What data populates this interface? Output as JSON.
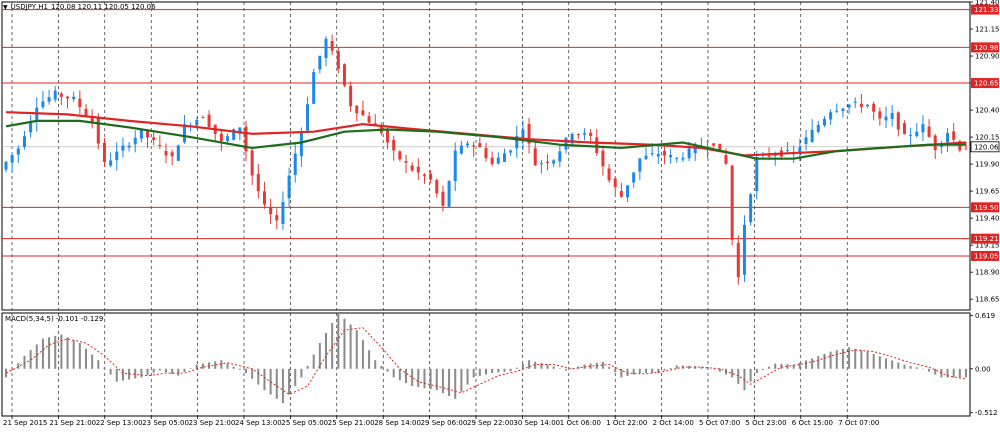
{
  "chart_data": [
    {
      "type": "candlestick",
      "title": "USDJPY,H1",
      "ohlc_text": "120.08 120.11 120.05 120.06",
      "ylim": [
        118.55,
        121.4
      ],
      "yticks": [
        "121.40",
        "121.15",
        "120.90",
        "120.65",
        "120.40",
        "120.15",
        "119.90",
        "119.65",
        "119.40",
        "119.15",
        "118.90",
        "118.65"
      ],
      "current_price": "120.06",
      "levels": [
        {
          "value": 121.33,
          "label": "121.33"
        },
        {
          "value": 120.98,
          "label": "120.98"
        },
        {
          "value": 120.65,
          "label": "120.65"
        },
        {
          "value": 119.5,
          "label": "119.50"
        },
        {
          "value": 119.21,
          "label": "119.21"
        },
        {
          "value": 119.05,
          "label": "119.05"
        }
      ],
      "xlabels": [
        "21 Sep 2015",
        "21 Sep 21:00",
        "22 Sep 13:00",
        "23 Sep 05:00",
        "23 Sep 21:00",
        "24 Sep 13:00",
        "25 Sep 05:00",
        "25 Sep 21:00",
        "28 Sep 14:00",
        "29 Sep 06:00",
        "29 Sep 22:00",
        "30 Sep 14:00",
        "1 Oct 06:00",
        "1 Oct 22:00",
        "2 Oct 14:00",
        "5 Oct 07:00",
        "5 Oct 23:00",
        "6 Oct 15:00",
        "7 Oct 07:00"
      ],
      "price_path": [
        [
          0,
          119.85
        ],
        [
          3,
          120.05
        ],
        [
          6,
          120.45
        ],
        [
          9,
          120.55
        ],
        [
          12,
          120.5
        ],
        [
          15,
          120.3
        ],
        [
          17,
          119.9
        ],
        [
          20,
          120.05
        ],
        [
          23,
          120.2
        ],
        [
          26,
          120.05
        ],
        [
          28,
          119.95
        ],
        [
          30,
          120.25
        ],
        [
          33,
          120.35
        ],
        [
          36,
          120.1
        ],
        [
          39,
          120.25
        ],
        [
          41,
          119.8
        ],
        [
          43,
          119.5
        ],
        [
          45,
          119.35
        ],
        [
          47,
          119.8
        ],
        [
          49,
          120.2
        ],
        [
          51,
          120.75
        ],
        [
          53,
          121.05
        ],
        [
          55,
          120.8
        ],
        [
          57,
          120.45
        ],
        [
          60,
          120.3
        ],
        [
          62,
          120.2
        ],
        [
          64,
          120.0
        ],
        [
          67,
          119.85
        ],
        [
          70,
          119.75
        ],
        [
          72,
          119.5
        ],
        [
          74,
          120.0
        ],
        [
          76,
          120.1
        ],
        [
          78,
          120.05
        ],
        [
          80,
          119.9
        ],
        [
          83,
          120.05
        ],
        [
          85,
          120.25
        ],
        [
          87,
          119.9
        ],
        [
          90,
          119.95
        ],
        [
          93,
          120.2
        ],
        [
          96,
          120.15
        ],
        [
          99,
          119.75
        ],
        [
          101,
          119.6
        ],
        [
          104,
          119.95
        ],
        [
          107,
          120.0
        ],
        [
          110,
          119.95
        ],
        [
          113,
          120.05
        ],
        [
          116,
          120.1
        ],
        [
          118,
          119.9
        ],
        [
          119,
          119.2
        ],
        [
          120,
          118.85
        ],
        [
          121,
          119.35
        ],
        [
          123,
          119.95
        ],
        [
          126,
          120.0
        ],
        [
          129,
          120.0
        ],
        [
          132,
          120.2
        ],
        [
          135,
          120.4
        ],
        [
          138,
          120.45
        ],
        [
          141,
          120.45
        ],
        [
          143,
          120.3
        ],
        [
          145,
          120.35
        ],
        [
          147,
          120.15
        ],
        [
          150,
          120.25
        ],
        [
          152,
          120.05
        ],
        [
          154,
          120.2
        ],
        [
          156,
          120.05
        ]
      ],
      "ma_slow": [
        [
          0,
          120.38
        ],
        [
          10,
          120.36
        ],
        [
          20,
          120.3
        ],
        [
          30,
          120.25
        ],
        [
          40,
          120.18
        ],
        [
          50,
          120.2
        ],
        [
          58,
          120.27
        ],
        [
          65,
          120.23
        ],
        [
          75,
          120.18
        ],
        [
          85,
          120.13
        ],
        [
          95,
          120.1
        ],
        [
          105,
          120.08
        ],
        [
          113,
          120.05
        ],
        [
          120,
          119.98
        ],
        [
          127,
          120.0
        ],
        [
          135,
          120.02
        ],
        [
          145,
          120.06
        ],
        [
          156,
          120.1
        ]
      ],
      "ma_fast": [
        [
          0,
          120.25
        ],
        [
          5,
          120.3
        ],
        [
          12,
          120.3
        ],
        [
          20,
          120.24
        ],
        [
          30,
          120.15
        ],
        [
          40,
          120.05
        ],
        [
          48,
          120.1
        ],
        [
          55,
          120.2
        ],
        [
          62,
          120.22
        ],
        [
          70,
          120.2
        ],
        [
          80,
          120.15
        ],
        [
          90,
          120.08
        ],
        [
          100,
          120.05
        ],
        [
          110,
          120.1
        ],
        [
          118,
          120.0
        ],
        [
          122,
          119.95
        ],
        [
          128,
          119.95
        ],
        [
          135,
          120.02
        ],
        [
          142,
          120.05
        ],
        [
          150,
          120.08
        ],
        [
          156,
          120.08
        ]
      ]
    },
    {
      "type": "histogram",
      "title": "MACD(5,34,5) -0.101 -0.129",
      "ylim": [
        -0.55,
        0.65
      ],
      "yticks": [
        "0.619",
        "0.00",
        "-0.512"
      ],
      "macd_path": [
        [
          0,
          -0.1
        ],
        [
          3,
          0.15
        ],
        [
          6,
          0.35
        ],
        [
          9,
          0.4
        ],
        [
          12,
          0.3
        ],
        [
          15,
          0.1
        ],
        [
          18,
          -0.15
        ],
        [
          22,
          -0.1
        ],
        [
          25,
          -0.02
        ],
        [
          28,
          -0.08
        ],
        [
          31,
          0.05
        ],
        [
          35,
          0.1
        ],
        [
          39,
          -0.05
        ],
        [
          42,
          -0.25
        ],
        [
          45,
          -0.4
        ],
        [
          48,
          -0.1
        ],
        [
          51,
          0.3
        ],
        [
          54,
          0.65
        ],
        [
          57,
          0.45
        ],
        [
          60,
          0.1
        ],
        [
          63,
          -0.1
        ],
        [
          66,
          -0.2
        ],
        [
          70,
          -0.25
        ],
        [
          73,
          -0.35
        ],
        [
          76,
          -0.1
        ],
        [
          79,
          -0.05
        ],
        [
          82,
          -0.03
        ],
        [
          85,
          0.1
        ],
        [
          88,
          0.05
        ],
        [
          91,
          -0.02
        ],
        [
          94,
          0.05
        ],
        [
          97,
          0.08
        ],
        [
          100,
          -0.1
        ],
        [
          103,
          -0.05
        ],
        [
          106,
          -0.05
        ],
        [
          109,
          0.04
        ],
        [
          112,
          0.03
        ],
        [
          115,
          0.0
        ],
        [
          118,
          -0.1
        ],
        [
          120,
          -0.25
        ],
        [
          122,
          -0.05
        ],
        [
          125,
          0.06
        ],
        [
          128,
          0.05
        ],
        [
          131,
          0.12
        ],
        [
          134,
          0.2
        ],
        [
          137,
          0.25
        ],
        [
          140,
          0.2
        ],
        [
          143,
          0.12
        ],
        [
          146,
          0.05
        ],
        [
          149,
          0.0
        ],
        [
          152,
          -0.1
        ],
        [
          156,
          -0.1
        ]
      ],
      "signal_path": [
        [
          0,
          -0.05
        ],
        [
          4,
          0.1
        ],
        [
          7,
          0.28
        ],
        [
          10,
          0.35
        ],
        [
          13,
          0.3
        ],
        [
          16,
          0.15
        ],
        [
          19,
          -0.05
        ],
        [
          23,
          -0.08
        ],
        [
          26,
          -0.05
        ],
        [
          29,
          -0.05
        ],
        [
          32,
          0.02
        ],
        [
          36,
          0.07
        ],
        [
          40,
          0.0
        ],
        [
          43,
          -0.15
        ],
        [
          46,
          -0.3
        ],
        [
          49,
          -0.2
        ],
        [
          52,
          0.15
        ],
        [
          55,
          0.45
        ],
        [
          58,
          0.48
        ],
        [
          61,
          0.25
        ],
        [
          64,
          0.0
        ],
        [
          67,
          -0.15
        ],
        [
          71,
          -0.22
        ],
        [
          74,
          -0.28
        ],
        [
          77,
          -0.18
        ],
        [
          80,
          -0.08
        ],
        [
          83,
          -0.03
        ],
        [
          86,
          0.05
        ],
        [
          89,
          0.05
        ],
        [
          92,
          0.0
        ],
        [
          95,
          0.03
        ],
        [
          98,
          0.05
        ],
        [
          101,
          -0.05
        ],
        [
          104,
          -0.06
        ],
        [
          107,
          -0.03
        ],
        [
          110,
          0.02
        ],
        [
          113,
          0.02
        ],
        [
          116,
          0.0
        ],
        [
          119,
          -0.08
        ],
        [
          121,
          -0.18
        ],
        [
          123,
          -0.1
        ],
        [
          126,
          0.02
        ],
        [
          129,
          0.05
        ],
        [
          132,
          0.1
        ],
        [
          135,
          0.17
        ],
        [
          138,
          0.22
        ],
        [
          141,
          0.2
        ],
        [
          144,
          0.14
        ],
        [
          147,
          0.07
        ],
        [
          150,
          0.02
        ],
        [
          153,
          -0.08
        ],
        [
          156,
          -0.12
        ]
      ]
    }
  ],
  "colors": {
    "bull": "#1e88e5",
    "bear": "#e53935",
    "ma_slow": "#e02424",
    "ma_fast": "#1e6b1e",
    "level": "#e02424",
    "grid": "#000000",
    "hist": "#8a8a8a",
    "signal": "#e02424",
    "price_label_bg": "#ffffff"
  }
}
